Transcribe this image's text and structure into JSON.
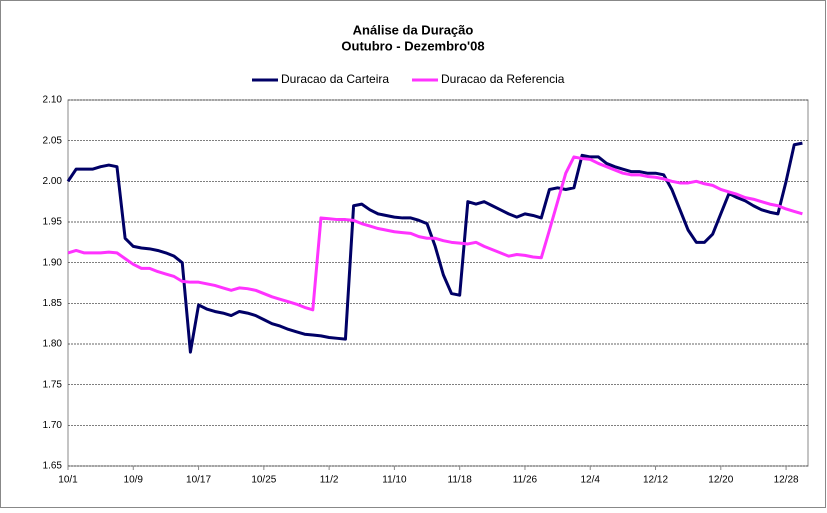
{
  "chart_data": {
    "type": "line",
    "title": "Análise da Duração",
    "subtitle": "Outubro - Dezembro'08",
    "categories": [
      "10/1",
      null,
      null,
      null,
      null,
      null,
      null,
      null,
      "10/9",
      null,
      null,
      null,
      null,
      null,
      null,
      null,
      "10/17",
      null,
      null,
      null,
      null,
      null,
      null,
      null,
      "10/25",
      null,
      null,
      null,
      null,
      null,
      null,
      null,
      "11/2",
      null,
      null,
      null,
      null,
      null,
      null,
      null,
      "11/10",
      null,
      null,
      null,
      null,
      null,
      null,
      null,
      "11/18",
      null,
      null,
      null,
      null,
      null,
      null,
      null,
      "11/26",
      null,
      null,
      null,
      null,
      null,
      null,
      null,
      "12/4",
      null,
      null,
      null,
      null,
      null,
      null,
      null,
      "12/12",
      null,
      null,
      null,
      null,
      null,
      null,
      null,
      "12/20",
      null,
      null,
      null,
      null,
      null,
      null,
      null,
      "12/28",
      null,
      null
    ],
    "series": [
      {
        "name": "Duracao da Carteira",
        "color": "#000066",
        "values": [
          2.0,
          2.015,
          2.015,
          2.015,
          2.018,
          2.02,
          2.018,
          1.93,
          1.92,
          1.918,
          1.917,
          1.915,
          1.912,
          1.908,
          1.9,
          1.79,
          1.848,
          1.843,
          1.84,
          1.838,
          1.835,
          1.84,
          1.838,
          1.835,
          1.83,
          1.825,
          1.822,
          1.818,
          1.815,
          1.812,
          1.811,
          1.81,
          1.808,
          1.807,
          1.806,
          1.97,
          1.972,
          1.965,
          1.96,
          1.958,
          1.956,
          1.955,
          1.955,
          1.952,
          1.948,
          1.92,
          1.885,
          1.862,
          1.86,
          1.975,
          1.972,
          1.975,
          1.97,
          1.965,
          1.96,
          1.956,
          1.96,
          1.958,
          1.955,
          1.99,
          1.992,
          1.99,
          1.992,
          2.032,
          2.03,
          2.03,
          2.022,
          2.018,
          2.015,
          2.012,
          2.012,
          2.01,
          2.01,
          2.008,
          1.99,
          1.965,
          1.94,
          1.925,
          1.925,
          1.935,
          1.96,
          1.985,
          1.98,
          1.976,
          1.97,
          1.965,
          1.962,
          1.96,
          2.0,
          2.045,
          2.047
        ]
      },
      {
        "name": "Duracao da Referencia",
        "color": "#ff33ff",
        "values": [
          1.912,
          1.915,
          1.912,
          1.912,
          1.912,
          1.913,
          1.912,
          1.905,
          1.898,
          1.893,
          1.893,
          1.889,
          1.886,
          1.883,
          1.877,
          1.876,
          1.876,
          1.874,
          1.872,
          1.869,
          1.866,
          1.869,
          1.868,
          1.866,
          1.862,
          1.858,
          1.855,
          1.852,
          1.849,
          1.845,
          1.842,
          1.955,
          1.954,
          1.953,
          1.953,
          1.952,
          1.948,
          1.945,
          1.942,
          1.94,
          1.938,
          1.937,
          1.936,
          1.932,
          1.93,
          1.93,
          1.927,
          1.925,
          1.924,
          1.923,
          1.925,
          1.92,
          1.916,
          1.912,
          1.908,
          1.91,
          1.909,
          1.907,
          1.906,
          1.94,
          1.975,
          2.01,
          2.03,
          2.028,
          2.027,
          2.022,
          2.018,
          2.014,
          2.01,
          2.008,
          2.008,
          2.006,
          2.005,
          2.003,
          2.0,
          1.998,
          1.998,
          2.0,
          1.997,
          1.995,
          1.99,
          1.987,
          1.984,
          1.98,
          1.978,
          1.975,
          1.972,
          1.97,
          1.966,
          1.963,
          1.96
        ]
      }
    ],
    "ylim": [
      1.65,
      2.1
    ],
    "yticks": [
      1.65,
      {
        "value": 1.7,
        "label": "1.70"
      },
      1.75,
      {
        "value": 1.8,
        "label": "1.80"
      },
      1.85,
      {
        "value": 1.9,
        "label": "1.90"
      },
      1.95,
      {
        "value": 2.0,
        "label": "2.00"
      },
      2.05,
      {
        "value": 2.1,
        "label": "2.10"
      }
    ],
    "grid": true,
    "legend": "top"
  }
}
